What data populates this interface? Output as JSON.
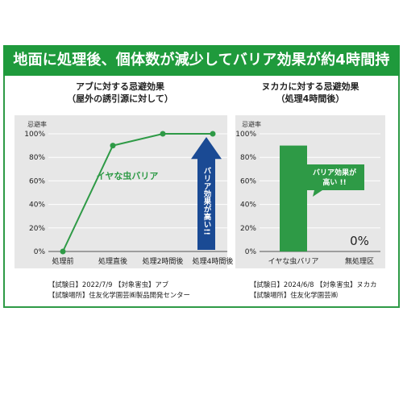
{
  "banner": "地面に処理後、個体数が減少してバリア効果が約4時間持続!",
  "chart_data": [
    {
      "type": "line",
      "title": "アブに対する忌避効果",
      "subtitle": "（屋外の誘引源に対して）",
      "ylabel": "忌避率",
      "categories": [
        "処理前",
        "処理直後",
        "処理2時間後",
        "処理4時間後"
      ],
      "values": [
        0,
        90,
        100,
        100
      ],
      "ylim": [
        0,
        100
      ],
      "yticks": [
        "0%",
        "20%",
        "40%",
        "60%",
        "80%",
        "100%"
      ],
      "grid": true,
      "series_label": "イヤな虫バリア",
      "line_color": "#2e9a46",
      "arrow_color": "#1a4a94",
      "annotation": "バリア効果が高い!!"
    },
    {
      "type": "bar",
      "title": "ヌカカに対する忌避効果",
      "subtitle": "（処理4時間後）",
      "ylabel": "忌避率",
      "categories": [
        "イヤな虫バリア",
        "無処理区"
      ],
      "values": [
        90,
        0
      ],
      "value_labels": [
        "",
        "0%"
      ],
      "ylim": [
        0,
        100
      ],
      "yticks": [
        "0%",
        "20%",
        "40%",
        "60%",
        "80%",
        "100%"
      ],
      "grid": true,
      "bar_color": "#2e9a46",
      "annotation": "バリア効果が\n高い !!"
    }
  ],
  "left_info": [
    "【試験日】2022/7/9 【対象害虫】アブ",
    "【試験場所】住友化学園芸㈱製品開発センター"
  ],
  "right_info": [
    "【試験日】2024/6/8 【対象害虫】ヌカカ",
    "【試験場所】住友化学園芸㈱"
  ]
}
